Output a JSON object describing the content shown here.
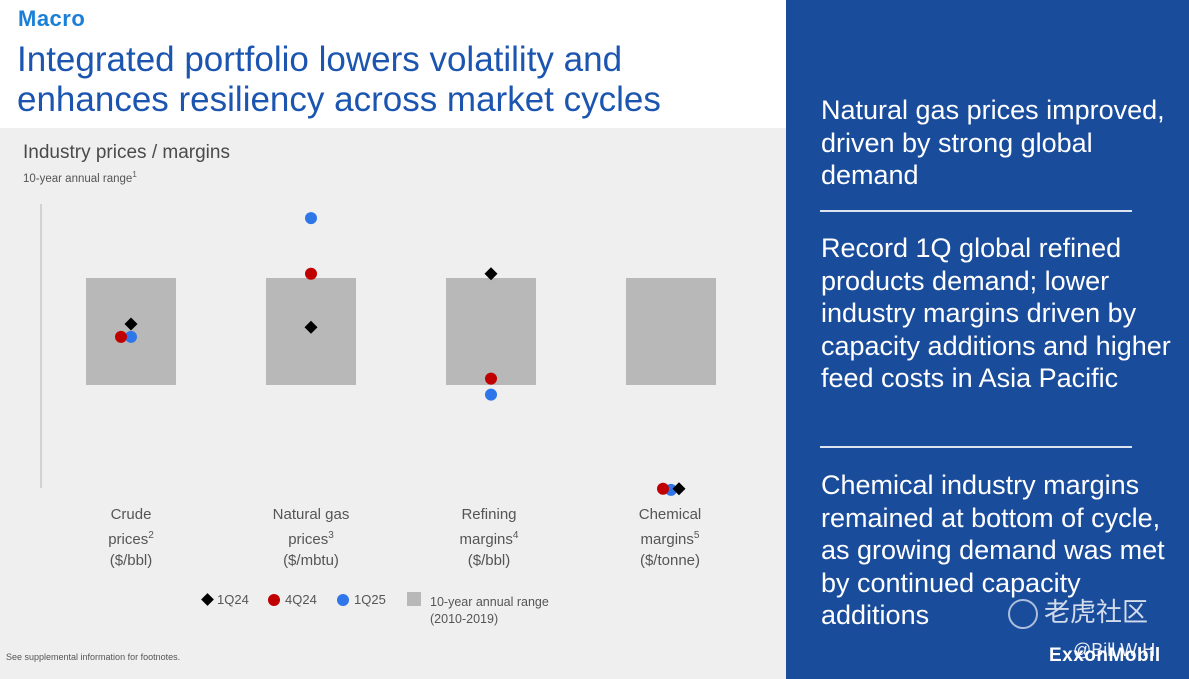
{
  "section": "Macro",
  "headline": "Integrated portfolio lowers volatility and enhances resiliency across market cycles",
  "chart": {
    "title": "Industry prices / margins",
    "subtitle": "10-year annual range",
    "subtitle_sup": "1",
    "categories": [
      {
        "line1": "Crude",
        "line2": "prices",
        "sup": "2",
        "line3": "($/bbl)"
      },
      {
        "line1": "Natural gas",
        "line2": "prices",
        "sup": "3",
        "line3": "($/mbtu)"
      },
      {
        "line1": "Refining",
        "line2": "margins",
        "sup": "4",
        "line3": "($/bbl)"
      },
      {
        "line1": "Chemical",
        "line2": "margins",
        "sup": "5",
        "line3": "($/tonne)"
      }
    ],
    "legend": {
      "q1_24": "1Q24",
      "q4_24": "4Q24",
      "q1_25": "1Q25",
      "range_line1": "10-year annual range",
      "range_line2": "(2010-2019)"
    },
    "colors": {
      "q1_24": "#000000",
      "q4_24": "#c00000",
      "q1_25": "#2f76e8",
      "range": "#b8b8b8"
    }
  },
  "chart_data": {
    "type": "scatter",
    "title": "Industry prices / margins",
    "subtitle": "10-year annual range",
    "note": "Values normalized relative to each category's 10-year annual range (range spans 0 to 1)",
    "categories": [
      "Crude prices ($/bbl)",
      "Natural gas prices ($/mbtu)",
      "Refining margins ($/bbl)",
      "Chemical margins ($/tonne)"
    ],
    "range": {
      "name": "10-year annual range (2010-2019)",
      "low": [
        0,
        0,
        0,
        0
      ],
      "high": [
        1,
        1,
        1,
        1
      ]
    },
    "series": [
      {
        "name": "1Q24",
        "marker": "diamond",
        "values": [
          0.57,
          0.54,
          1.04,
          -0.97
        ]
      },
      {
        "name": "4Q24",
        "marker": "circle",
        "values": [
          0.45,
          1.04,
          0.06,
          -0.97
        ]
      },
      {
        "name": "1Q25",
        "marker": "circle",
        "values": [
          0.45,
          1.56,
          -0.09,
          -0.98
        ]
      }
    ]
  },
  "footnote": "See supplemental information for footnotes.",
  "right_panel": {
    "bullets": [
      "Natural gas prices improved, driven by strong global demand",
      "Record 1Q global refined products demand; lower industry margins driven by capacity additions and higher feed costs in Asia Pacific",
      "Chemical industry margins remained at bottom of cycle, as growing demand was met by continued capacity additions"
    ],
    "logo": "ExxonMobil",
    "watermark": "老虎社区",
    "watermark2": "@Bill W H"
  }
}
